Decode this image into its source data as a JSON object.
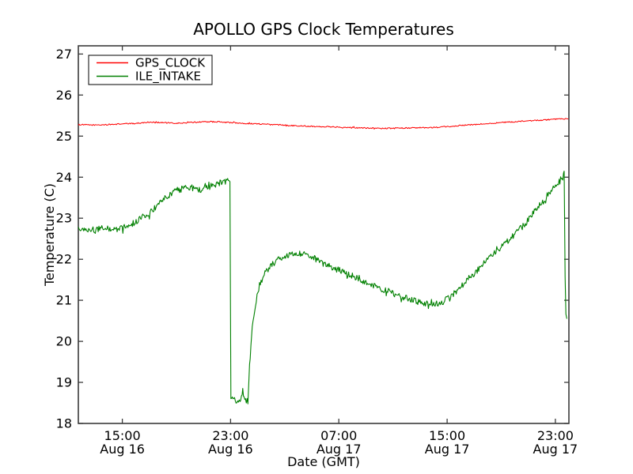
{
  "chart_data": {
    "type": "line",
    "title": "APOLLO GPS Clock Temperatures",
    "xlabel": "Date (GMT)",
    "ylabel": "Temperature (C)",
    "grid": false,
    "legend_position": "upper left",
    "background_color": "#ffffff",
    "axis_color": "#3b3b3b",
    "x_hours_origin": "Aug 16 00:00 GMT",
    "xlim_hours": [
      11.75,
      48.0
    ],
    "ylim": [
      18,
      27.2
    ],
    "y_ticks": [
      18,
      19,
      20,
      21,
      22,
      23,
      24,
      25,
      26,
      27
    ],
    "x_ticks": [
      {
        "hour": 15,
        "time": "15:00",
        "date": "Aug 16"
      },
      {
        "hour": 23,
        "time": "23:00",
        "date": "Aug 16"
      },
      {
        "hour": 31,
        "time": "07:00",
        "date": "Aug 17"
      },
      {
        "hour": 39,
        "time": "15:00",
        "date": "Aug 17"
      },
      {
        "hour": 47,
        "time": "23:00",
        "date": "Aug 17"
      }
    ],
    "series": [
      {
        "name": "GPS_CLOCK",
        "color": "#ff0000",
        "noise_amplitude": 0.014,
        "points": [
          [
            11.75,
            25.28
          ],
          [
            13,
            25.27
          ],
          [
            14,
            25.28
          ],
          [
            15,
            25.3
          ],
          [
            16,
            25.31
          ],
          [
            17,
            25.34
          ],
          [
            18,
            25.33
          ],
          [
            19,
            25.31
          ],
          [
            20,
            25.33
          ],
          [
            21,
            25.35
          ],
          [
            22,
            25.35
          ],
          [
            23,
            25.33
          ],
          [
            24,
            25.31
          ],
          [
            25,
            25.3
          ],
          [
            26,
            25.28
          ],
          [
            27,
            25.27
          ],
          [
            28,
            25.25
          ],
          [
            29,
            25.24
          ],
          [
            30,
            25.23
          ],
          [
            31,
            25.22
          ],
          [
            32,
            25.21
          ],
          [
            33,
            25.2
          ],
          [
            34,
            25.19
          ],
          [
            35,
            25.19
          ],
          [
            36,
            25.2
          ],
          [
            37,
            25.2
          ],
          [
            38,
            25.21
          ],
          [
            39,
            25.23
          ],
          [
            40,
            25.26
          ],
          [
            41,
            25.28
          ],
          [
            42,
            25.31
          ],
          [
            43,
            25.33
          ],
          [
            44,
            25.35
          ],
          [
            45,
            25.37
          ],
          [
            46,
            25.39
          ],
          [
            47,
            25.41
          ],
          [
            47.96,
            25.42
          ]
        ]
      },
      {
        "name": "ILE_INTAKE",
        "color": "#008000",
        "noise_amplitude": 0.075,
        "points": [
          [
            11.75,
            22.78
          ],
          [
            12.3,
            22.74
          ],
          [
            13.0,
            22.72
          ],
          [
            13.7,
            22.76
          ],
          [
            14.4,
            22.73
          ],
          [
            15.2,
            22.78
          ],
          [
            15.8,
            22.88
          ],
          [
            16.4,
            23.0
          ],
          [
            17.0,
            23.12
          ],
          [
            17.6,
            23.3
          ],
          [
            18.2,
            23.5
          ],
          [
            18.8,
            23.65
          ],
          [
            19.5,
            23.72
          ],
          [
            20.2,
            23.75
          ],
          [
            20.8,
            23.7
          ],
          [
            21.4,
            23.76
          ],
          [
            22.0,
            23.84
          ],
          [
            22.5,
            23.88
          ],
          [
            22.95,
            23.93
          ],
          [
            23.02,
            18.62
          ],
          [
            23.4,
            18.58
          ],
          [
            23.7,
            18.55
          ],
          [
            23.9,
            18.78
          ],
          [
            24.1,
            18.56
          ],
          [
            24.28,
            18.55
          ],
          [
            24.4,
            19.4
          ],
          [
            24.6,
            20.3
          ],
          [
            24.9,
            21.0
          ],
          [
            25.2,
            21.4
          ],
          [
            25.6,
            21.7
          ],
          [
            26.0,
            21.85
          ],
          [
            26.5,
            21.98
          ],
          [
            27.0,
            22.05
          ],
          [
            27.5,
            22.12
          ],
          [
            28.0,
            22.15
          ],
          [
            28.6,
            22.1
          ],
          [
            29.2,
            22.02
          ],
          [
            30.0,
            21.9
          ],
          [
            31.0,
            21.75
          ],
          [
            32.0,
            21.6
          ],
          [
            33.0,
            21.45
          ],
          [
            34.0,
            21.3
          ],
          [
            35.0,
            21.17
          ],
          [
            36.0,
            21.05
          ],
          [
            37.0,
            20.95
          ],
          [
            37.9,
            20.88
          ],
          [
            38.6,
            20.95
          ],
          [
            39.3,
            21.1
          ],
          [
            40.0,
            21.32
          ],
          [
            41.0,
            21.65
          ],
          [
            42.0,
            22.0
          ],
          [
            43.0,
            22.3
          ],
          [
            44.0,
            22.6
          ],
          [
            45.0,
            22.95
          ],
          [
            46.0,
            23.4
          ],
          [
            46.9,
            23.75
          ],
          [
            47.55,
            24.0
          ],
          [
            47.65,
            24.1
          ],
          [
            47.72,
            21.5
          ],
          [
            47.78,
            20.6
          ],
          [
            47.85,
            20.55
          ]
        ]
      }
    ]
  }
}
